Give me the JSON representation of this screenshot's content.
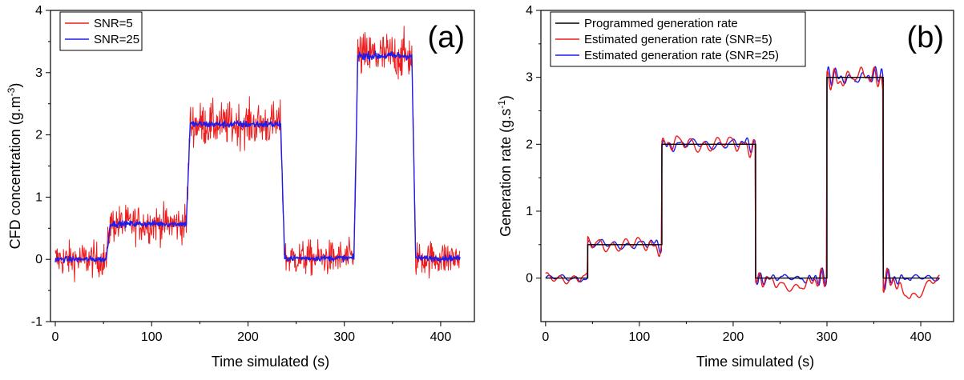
{
  "chart_data": [
    {
      "type": "line",
      "panel_label": "(a)",
      "xlabel": "Time simulated (s)",
      "ylabel": "CFD concentration (g.m",
      "ylabel_sup": "-3",
      "ylabel_end": ")",
      "xlim": [
        -5,
        435
      ],
      "ylim": [
        -1,
        4
      ],
      "xticks": [
        0,
        100,
        200,
        300,
        400
      ],
      "yticks": [
        -1,
        0,
        1,
        2,
        3,
        4
      ],
      "grid": false,
      "legend_position": "top-left",
      "steps": [
        {
          "x_start": 0,
          "x_end": 55,
          "value": 0
        },
        {
          "x_start": 55,
          "x_end": 138,
          "value": 0.57
        },
        {
          "x_start": 138,
          "x_end": 236,
          "value": 2.17
        },
        {
          "x_start": 236,
          "x_end": 312,
          "value": 0.02
        },
        {
          "x_start": 312,
          "x_end": 372,
          "value": 3.27
        },
        {
          "x_start": 372,
          "x_end": 420,
          "value": 0.02
        }
      ],
      "series": [
        {
          "name": "SNR=5",
          "color": "#ee1c1c",
          "noise_amplitude": 0.36
        },
        {
          "name": "SNR=25",
          "color": "#1c1cee",
          "noise_amplitude": 0.06
        }
      ]
    },
    {
      "type": "line",
      "panel_label": "(b)",
      "xlabel": "Time simulated (s)",
      "ylabel": "Generation rate (g.s",
      "ylabel_sup": "-1",
      "ylabel_end": ")",
      "xlim": [
        -5,
        435
      ],
      "ylim": [
        -0.65,
        4
      ],
      "xticks": [
        0,
        100,
        200,
        300,
        400
      ],
      "yticks": [
        0,
        1,
        2,
        3,
        4
      ],
      "grid": false,
      "legend_position": "top-left",
      "steps": [
        {
          "x_start": 0,
          "x_end": 45,
          "value": 0
        },
        {
          "x_start": 45,
          "x_end": 124,
          "value": 0.5
        },
        {
          "x_start": 124,
          "x_end": 224,
          "value": 2
        },
        {
          "x_start": 224,
          "x_end": 300,
          "value": 0
        },
        {
          "x_start": 300,
          "x_end": 360,
          "value": 3
        },
        {
          "x_start": 360,
          "x_end": 420,
          "value": 0
        }
      ],
      "series": [
        {
          "name": "Programmed generation rate",
          "color": "#000000"
        },
        {
          "name": "Estimated generation rate (SNR=5)",
          "color": "#ee1c1c"
        },
        {
          "name": "Estimated generation rate (SNR=25)",
          "color": "#1c1cee"
        }
      ]
    }
  ]
}
